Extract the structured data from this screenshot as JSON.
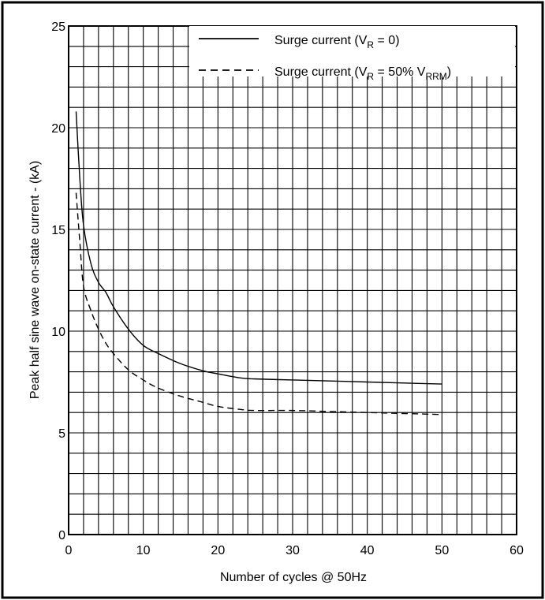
{
  "chart_data": {
    "type": "line",
    "xlabel": "Number of cycles @ 50Hz",
    "ylabel": "Peak half sine wave on-state current - (kA)",
    "xlim": [
      0,
      60
    ],
    "ylim": [
      0,
      25
    ],
    "x_ticks": [
      0,
      10,
      20,
      30,
      40,
      50,
      60
    ],
    "y_ticks": [
      0,
      5,
      10,
      15,
      20,
      25
    ],
    "x_minor_step": 2,
    "y_minor_step": 1,
    "grid": true,
    "legend_position": "top-right",
    "legend_text": {
      "s1_prefix": "Surge current (V",
      "s1_sub": "R",
      "s1_suffix": " = 0)",
      "s2_prefix": "Surge current (V",
      "s2_sub": "R",
      "s2_mid": " = 50% V",
      "s2_sub2": "RRM",
      "s2_suffix": ")"
    },
    "series": [
      {
        "style": "solid",
        "x": [
          1,
          1.5,
          2,
          3,
          4,
          5,
          6,
          8,
          10,
          12,
          15,
          18,
          20,
          23,
          25,
          30,
          35,
          40,
          45,
          50
        ],
        "y": [
          20.8,
          17.5,
          15.2,
          13.3,
          12.4,
          11.9,
          11.2,
          10.1,
          9.3,
          8.9,
          8.4,
          8.05,
          7.9,
          7.7,
          7.65,
          7.6,
          7.55,
          7.5,
          7.45,
          7.4
        ]
      },
      {
        "style": "dashed",
        "x": [
          1,
          1.5,
          2,
          3,
          4,
          5,
          6,
          8,
          10,
          12,
          15,
          18,
          20,
          23,
          25,
          30,
          35,
          40,
          45,
          50
        ],
        "y": [
          16.8,
          14.4,
          12.2,
          11.0,
          10.1,
          9.4,
          8.9,
          8.1,
          7.6,
          7.2,
          6.8,
          6.5,
          6.3,
          6.15,
          6.1,
          6.1,
          6.05,
          6.0,
          5.95,
          5.9
        ]
      }
    ]
  }
}
